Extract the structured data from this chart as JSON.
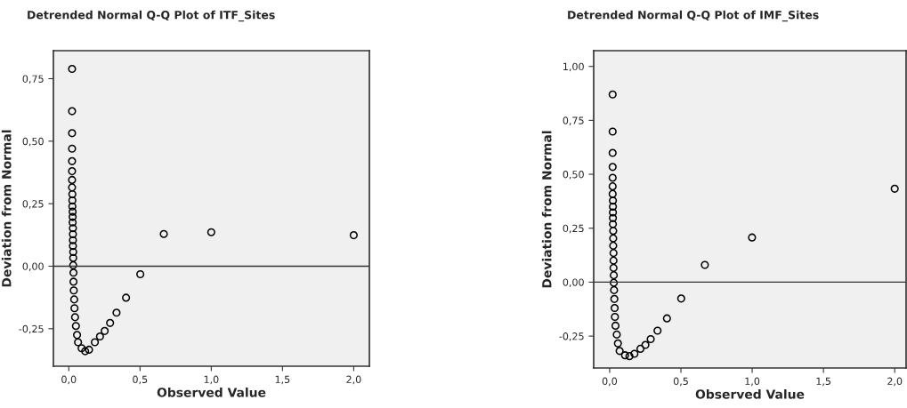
{
  "chart_data": [
    {
      "type": "scatter",
      "title": "Detrended Normal Q-Q Plot of ITF_Sites",
      "xlabel": "Observed Value",
      "ylabel": "Deviation from Normal",
      "marker": "circle",
      "grid": false,
      "series": [
        {
          "color": "#000000",
          "x": [
            0.023,
            0.023,
            0.023,
            0.023,
            0.023,
            0.023,
            0.023,
            0.023,
            0.025,
            0.025,
            0.025,
            0.027,
            0.027,
            0.027,
            0.029,
            0.029,
            0.029,
            0.029,
            0.031,
            0.031,
            0.031,
            0.033,
            0.033,
            0.035,
            0.038,
            0.04,
            0.044,
            0.05,
            0.058,
            0.065,
            0.09,
            0.115,
            0.142,
            0.183,
            0.219,
            0.252,
            0.29,
            0.335,
            0.402,
            0.502,
            0.667,
            1.0,
            2.0
          ],
          "values": [
            0.789,
            0.62,
            0.532,
            0.47,
            0.42,
            0.38,
            0.345,
            0.315,
            0.288,
            0.263,
            0.239,
            0.218,
            0.197,
            0.175,
            0.152,
            0.128,
            0.104,
            0.081,
            0.057,
            0.033,
            0.004,
            -0.026,
            -0.062,
            -0.097,
            -0.133,
            -0.168,
            -0.204,
            -0.239,
            -0.275,
            -0.304,
            -0.328,
            -0.34,
            -0.334,
            -0.304,
            -0.281,
            -0.259,
            -0.227,
            -0.186,
            -0.126,
            -0.032,
            0.129,
            0.136,
            0.124
          ]
        }
      ],
      "ref_lines": [
        {
          "axis": "y",
          "value": 0,
          "color": "#333333"
        }
      ],
      "xlim": [
        -0.108,
        2.11
      ],
      "ylim": [
        -0.4,
        0.862
      ],
      "xticks": [
        {
          "value": 0,
          "label": "0,0"
        },
        {
          "value": 0.5,
          "label": "0,5"
        },
        {
          "value": 1,
          "label": "1,0"
        },
        {
          "value": 1.5,
          "label": "1,5"
        },
        {
          "value": 2,
          "label": "2,0"
        }
      ],
      "yticks": [
        {
          "value": -0.25,
          "label": "-0,25"
        },
        {
          "value": 0,
          "label": "0,00"
        },
        {
          "value": 0.25,
          "label": "0,25"
        },
        {
          "value": 0.5,
          "label": "0,50"
        },
        {
          "value": 0.75,
          "label": "0,75"
        }
      ]
    },
    {
      "type": "scatter",
      "title": "Detrended Normal Q-Q Plot of IMF_Sites",
      "xlabel": "Observed Value",
      "ylabel": "Deviation from Normal",
      "marker": "circle",
      "grid": false,
      "series": [
        {
          "color": "#000000",
          "x": [
            0.021,
            0.021,
            0.021,
            0.021,
            0.021,
            0.021,
            0.021,
            0.023,
            0.023,
            0.023,
            0.023,
            0.023,
            0.025,
            0.025,
            0.025,
            0.027,
            0.027,
            0.027,
            0.029,
            0.029,
            0.031,
            0.033,
            0.035,
            0.037,
            0.041,
            0.05,
            0.058,
            0.07,
            0.108,
            0.139,
            0.174,
            0.216,
            0.251,
            0.288,
            0.336,
            0.402,
            0.502,
            0.668,
            0.999,
            2.0
          ],
          "values": [
            0.87,
            0.698,
            0.599,
            0.534,
            0.484,
            0.444,
            0.409,
            0.378,
            0.35,
            0.323,
            0.297,
            0.269,
            0.238,
            0.203,
            0.169,
            0.135,
            0.1,
            0.066,
            0.032,
            -0.003,
            -0.037,
            -0.078,
            -0.12,
            -0.161,
            -0.202,
            -0.243,
            -0.284,
            -0.319,
            -0.339,
            -0.343,
            -0.332,
            -0.309,
            -0.291,
            -0.264,
            -0.225,
            -0.168,
            -0.076,
            0.08,
            0.207,
            0.433
          ]
        }
      ],
      "ref_lines": [
        {
          "axis": "y",
          "value": 0,
          "color": "#333333"
        }
      ],
      "xlim": [
        -0.112,
        2.08
      ],
      "ylim": [
        -0.398,
        1.073
      ],
      "xticks": [
        {
          "value": 0,
          "label": "0,0"
        },
        {
          "value": 0.5,
          "label": "0,5"
        },
        {
          "value": 1,
          "label": "1,0"
        },
        {
          "value": 1.5,
          "label": "1,5"
        },
        {
          "value": 2,
          "label": "2,0"
        }
      ],
      "yticks": [
        {
          "value": -0.25,
          "label": "-0,25"
        },
        {
          "value": 0,
          "label": "0,00"
        },
        {
          "value": 0.25,
          "label": "0,25"
        },
        {
          "value": 0.5,
          "label": "0,50"
        },
        {
          "value": 0.75,
          "label": "0,75"
        },
        {
          "value": 1,
          "label": "1,00"
        }
      ]
    }
  ]
}
